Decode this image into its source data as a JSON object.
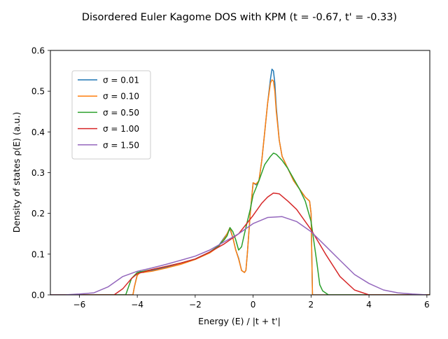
{
  "chart_data": {
    "type": "line",
    "title": "Disordered Euler Kagome DOS with KPM (t = -0.67, t' = -0.33)",
    "xlabel": "Energy (E) / |t + t'|",
    "ylabel": "Density of states ρ(E) (a.u.)",
    "xlim": [
      -7.0,
      6.1
    ],
    "ylim": [
      0.0,
      0.6
    ],
    "xticks": [
      -6,
      -4,
      -2,
      0,
      2,
      4,
      6
    ],
    "xtick_labels": [
      "−6",
      "−4",
      "−2",
      "0",
      "2",
      "4",
      "6"
    ],
    "yticks": [
      0.0,
      0.1,
      0.2,
      0.3,
      0.4,
      0.5,
      0.6
    ],
    "ytick_labels": [
      "0.0",
      "0.1",
      "0.2",
      "0.3",
      "0.4",
      "0.5",
      "0.6"
    ],
    "grid": false,
    "legend_position": "upper-left",
    "series": [
      {
        "name": "σ = 0.01",
        "color": "#1f77b4",
        "x": [
          -7.0,
          -4.3,
          -4.15,
          -4.1,
          -4.0,
          -3.9,
          -3.8,
          -3.5,
          -3.0,
          -2.5,
          -2.0,
          -1.5,
          -1.2,
          -1.0,
          -0.9,
          -0.8,
          -0.7,
          -0.6,
          -0.5,
          -0.4,
          -0.3,
          -0.25,
          -0.2,
          -0.1,
          0.0,
          0.1,
          0.2,
          0.3,
          0.4,
          0.5,
          0.6,
          0.65,
          0.7,
          0.75,
          0.8,
          0.9,
          1.0,
          1.2,
          1.4,
          1.6,
          1.8,
          1.95,
          2.0,
          2.05,
          2.1,
          6.1
        ],
        "y": [
          0.0,
          0.0,
          0.0,
          0.02,
          0.05,
          0.058,
          0.055,
          0.06,
          0.068,
          0.078,
          0.088,
          0.105,
          0.12,
          0.14,
          0.15,
          0.162,
          0.14,
          0.11,
          0.09,
          0.06,
          0.055,
          0.06,
          0.1,
          0.2,
          0.275,
          0.27,
          0.28,
          0.33,
          0.4,
          0.47,
          0.53,
          0.554,
          0.55,
          0.52,
          0.46,
          0.38,
          0.34,
          0.31,
          0.28,
          0.26,
          0.24,
          0.23,
          0.2,
          0.0,
          0.0,
          0.0
        ]
      },
      {
        "name": "σ = 0.10",
        "color": "#ff7f0e",
        "x": [
          -7.0,
          -4.3,
          -4.15,
          -4.1,
          -4.0,
          -3.9,
          -3.8,
          -3.5,
          -3.0,
          -2.5,
          -2.0,
          -1.5,
          -1.2,
          -1.0,
          -0.9,
          -0.8,
          -0.7,
          -0.6,
          -0.5,
          -0.4,
          -0.3,
          -0.25,
          -0.2,
          -0.1,
          0.0,
          0.1,
          0.2,
          0.3,
          0.4,
          0.5,
          0.6,
          0.65,
          0.7,
          0.75,
          0.8,
          0.9,
          1.0,
          1.2,
          1.4,
          1.6,
          1.8,
          1.95,
          2.0,
          2.05,
          2.1,
          6.1
        ],
        "y": [
          0.0,
          0.0,
          0.0,
          0.02,
          0.048,
          0.055,
          0.055,
          0.058,
          0.066,
          0.075,
          0.087,
          0.103,
          0.118,
          0.138,
          0.15,
          0.165,
          0.14,
          0.11,
          0.088,
          0.06,
          0.055,
          0.06,
          0.1,
          0.2,
          0.275,
          0.272,
          0.28,
          0.33,
          0.4,
          0.47,
          0.52,
          0.528,
          0.525,
          0.5,
          0.45,
          0.38,
          0.34,
          0.31,
          0.28,
          0.26,
          0.24,
          0.23,
          0.2,
          0.0,
          0.0,
          0.0
        ]
      },
      {
        "name": "σ = 0.50",
        "color": "#2ca02c",
        "x": [
          -7.0,
          -4.4,
          -4.3,
          -4.2,
          -4.0,
          -3.5,
          -3.0,
          -2.5,
          -2.0,
          -1.5,
          -1.2,
          -1.0,
          -0.9,
          -0.8,
          -0.7,
          -0.6,
          -0.5,
          -0.4,
          -0.3,
          -0.2,
          -0.1,
          0.0,
          0.2,
          0.4,
          0.6,
          0.7,
          0.8,
          1.0,
          1.2,
          1.4,
          1.6,
          1.8,
          2.0,
          2.2,
          2.3,
          2.4,
          2.6,
          6.1
        ],
        "y": [
          0.0,
          0.0,
          0.02,
          0.04,
          0.055,
          0.062,
          0.07,
          0.078,
          0.088,
          0.105,
          0.12,
          0.135,
          0.145,
          0.165,
          0.155,
          0.135,
          0.11,
          0.118,
          0.15,
          0.18,
          0.21,
          0.245,
          0.28,
          0.32,
          0.34,
          0.348,
          0.345,
          0.33,
          0.31,
          0.285,
          0.26,
          0.23,
          0.18,
          0.08,
          0.025,
          0.01,
          0.0,
          0.0
        ]
      },
      {
        "name": "σ = 1.00",
        "color": "#d62728",
        "x": [
          -7.0,
          -4.8,
          -4.5,
          -4.2,
          -4.0,
          -3.5,
          -3.0,
          -2.5,
          -2.0,
          -1.5,
          -1.0,
          -0.5,
          0.0,
          0.3,
          0.5,
          0.7,
          0.9,
          1.2,
          1.5,
          2.0,
          2.5,
          3.0,
          3.5,
          4.0,
          6.1
        ],
        "y": [
          0.0,
          0.0,
          0.015,
          0.04,
          0.052,
          0.062,
          0.07,
          0.078,
          0.088,
          0.105,
          0.125,
          0.15,
          0.195,
          0.225,
          0.24,
          0.25,
          0.248,
          0.23,
          0.21,
          0.16,
          0.1,
          0.045,
          0.012,
          0.0,
          0.0
        ]
      },
      {
        "name": "σ = 1.50",
        "color": "#9467bd",
        "x": [
          -7.0,
          -6.5,
          -6.0,
          -5.5,
          -5.0,
          -4.5,
          -4.0,
          -3.5,
          -3.0,
          -2.5,
          -2.0,
          -1.5,
          -1.0,
          -0.5,
          0.0,
          0.5,
          1.0,
          1.5,
          2.0,
          2.5,
          3.0,
          3.5,
          4.0,
          4.5,
          5.0,
          5.5,
          6.0
        ],
        "y": [
          0.0,
          0.0,
          0.002,
          0.005,
          0.02,
          0.045,
          0.058,
          0.066,
          0.075,
          0.085,
          0.095,
          0.11,
          0.13,
          0.15,
          0.175,
          0.19,
          0.192,
          0.18,
          0.155,
          0.12,
          0.085,
          0.05,
          0.028,
          0.012,
          0.005,
          0.002,
          0.0
        ]
      }
    ]
  }
}
